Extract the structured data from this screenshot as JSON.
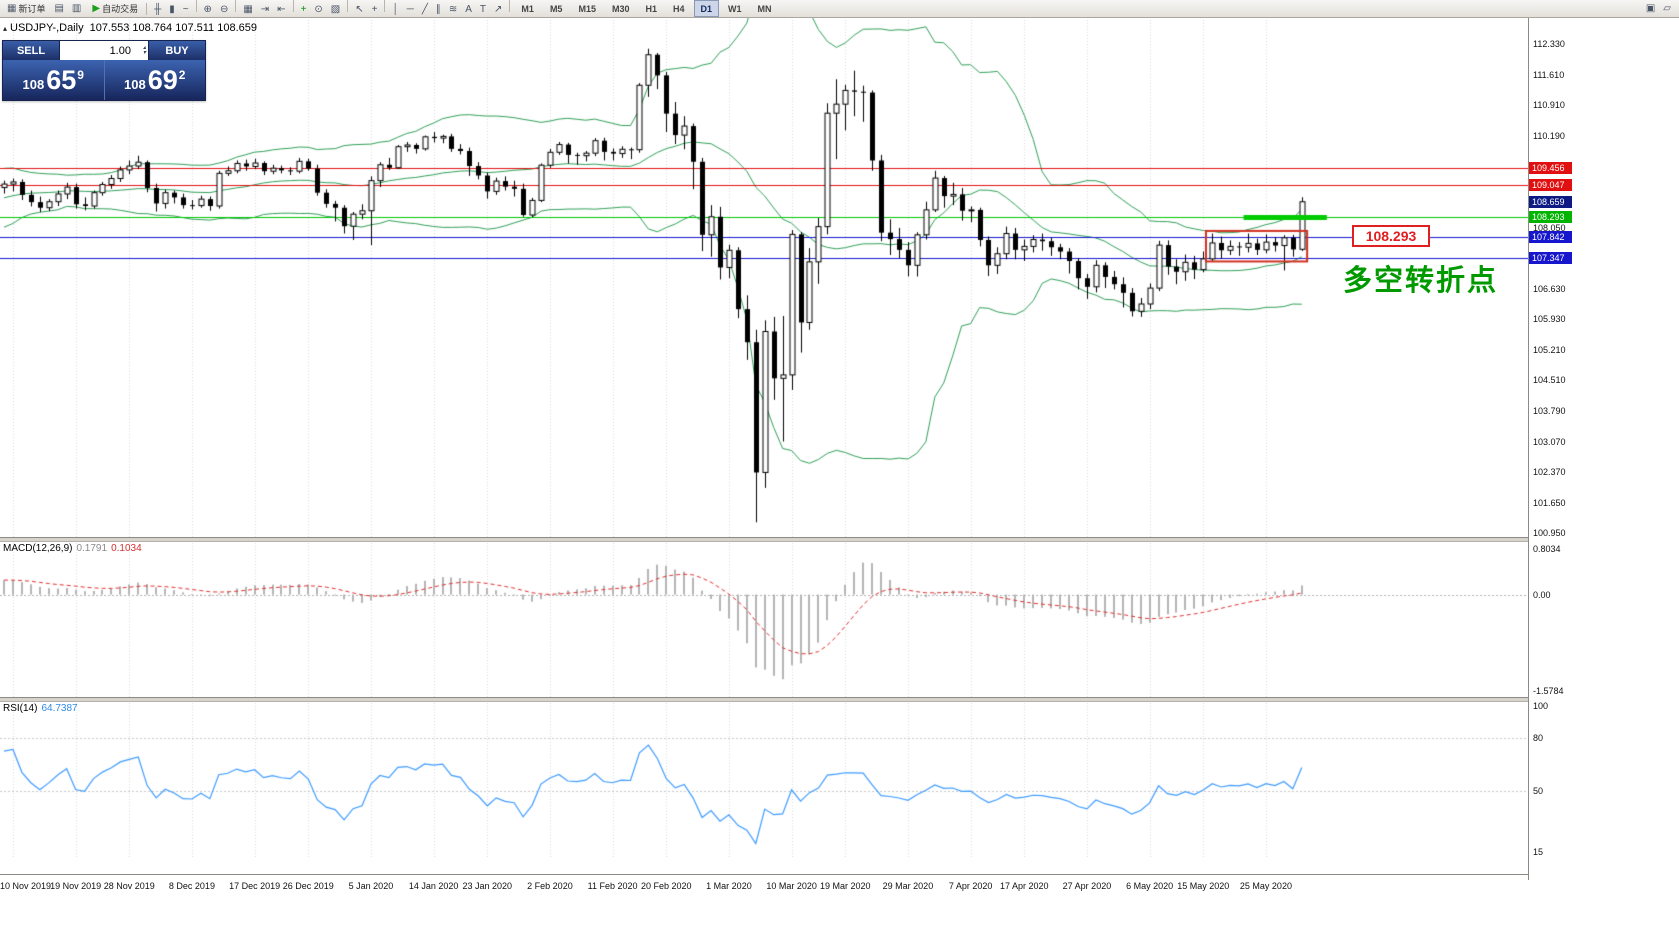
{
  "toolbar": {
    "new_order": {
      "label": "新订单"
    },
    "autotrade": {
      "label": "自动交易"
    },
    "standalone_icons": [
      {
        "name": "new-chart-icon",
        "glyph": "▤"
      },
      {
        "name": "profiles-icon",
        "glyph": "▥"
      }
    ],
    "icon_groups": [
      {
        "name": "chart-type",
        "icons": [
          {
            "name": "bar-chart-icon",
            "glyph": "╫"
          },
          {
            "name": "candlestick-chart-icon",
            "glyph": "▮"
          },
          {
            "name": "line-chart-icon",
            "glyph": "~"
          }
        ]
      },
      {
        "name": "zoom",
        "icons": [
          {
            "name": "zoom-in-icon",
            "glyph": "⊕"
          },
          {
            "name": "zoom-out-icon",
            "glyph": "⊖"
          }
        ]
      },
      {
        "name": "windows",
        "icons": [
          {
            "name": "tile-windows-icon",
            "glyph": "▦"
          },
          {
            "name": "auto-scroll-icon",
            "glyph": "⇥"
          },
          {
            "name": "chart-shift-icon",
            "glyph": "⇤"
          }
        ]
      },
      {
        "name": "insert",
        "icons": [
          {
            "name": "indicators-icon",
            "glyph": "+",
            "color": "#0a8f0a"
          },
          {
            "name": "periods-icon",
            "glyph": "⊙"
          },
          {
            "name": "templates-icon",
            "glyph": "▧"
          }
        ]
      },
      {
        "name": "cursor",
        "icons": [
          {
            "name": "cursor-icon",
            "glyph": "↖"
          },
          {
            "name": "crosshair-icon",
            "glyph": "+"
          }
        ]
      },
      {
        "name": "objects",
        "icons": [
          {
            "name": "vertical-line-icon",
            "glyph": "│"
          },
          {
            "name": "horizontal-line-icon",
            "glyph": "─"
          },
          {
            "name": "trendline-icon",
            "glyph": "╱"
          },
          {
            "name": "channel-icon",
            "glyph": "∥"
          },
          {
            "name": "fibonacci-icon",
            "glyph": "≋"
          },
          {
            "name": "text-icon",
            "glyph": "A"
          },
          {
            "name": "label-icon",
            "glyph": "T"
          },
          {
            "name": "arrows-icon",
            "glyph": "↗"
          }
        ]
      }
    ],
    "timeframes": {
      "items": [
        "M1",
        "M5",
        "M15",
        "M30",
        "H1",
        "H4",
        "D1",
        "W1",
        "MN"
      ],
      "active": "D1"
    },
    "right_icons": [
      {
        "name": "template-icon",
        "glyph": "▣"
      },
      {
        "name": "edit-icon",
        "glyph": "▱"
      }
    ]
  },
  "symbol_bar": {
    "collapse_icon": "▴",
    "symbol": "USDJPY-,Daily",
    "ohlc": "107.553 108.764 107.511 108.659"
  },
  "trade_panel": {
    "sell_label": "SELL",
    "buy_label": "BUY",
    "volume": "1.00",
    "sell": {
      "big": "108",
      "pips": "65",
      "frac": "9"
    },
    "buy": {
      "big": "108",
      "pips": "69",
      "frac": "2"
    }
  },
  "indicators": {
    "macd_label": "MACD(12,26,9)",
    "macd_value_1": "0.1791",
    "macd_value_2": "0.1034",
    "rsi_label": "RSI(14)",
    "rsi_value": "64.7387"
  },
  "price_axis": {
    "labels": [
      "112.330",
      "111.610",
      "110.910",
      "110.190",
      "108.050",
      "106.630",
      "105.930",
      "105.210",
      "104.510",
      "103.790",
      "103.070",
      "102.370",
      "101.650",
      "100.950"
    ],
    "badges": [
      {
        "text": "109.456",
        "color": "#e01010"
      },
      {
        "text": "109.047",
        "color": "#e01010"
      },
      {
        "text": "108.659",
        "color": "#0d1a84"
      },
      {
        "text": "108.293",
        "color": "#00b400"
      },
      {
        "text": "107.842",
        "color": "#1616cc"
      },
      {
        "text": "107.347",
        "color": "#1616cc"
      }
    ]
  },
  "macd_axis": {
    "top": "0.8034",
    "zero": "0.00",
    "bottom": "-1.5784"
  },
  "rsi_axis": {
    "labels": [
      "100",
      "80",
      "50",
      "15"
    ]
  },
  "annotations": {
    "level_label": "108.293",
    "turning_point": "多空转折点"
  },
  "chart_data": {
    "type": "candlestick",
    "symbol": "USDJPY",
    "period": "Daily",
    "y_range": [
      100.95,
      112.73
    ],
    "x_axis": {
      "labels": [
        "10 Nov 2019",
        "19 Nov 2019",
        "28 Nov 2019",
        "8 Dec 2019",
        "17 Dec 2019",
        "26 Dec 2019",
        "5 Jan 2020",
        "14 Jan 2020",
        "23 Jan 2020",
        "2 Feb 2020",
        "11 Feb 2020",
        "20 Feb 2020",
        "1 Mar 2020",
        "10 Mar 2020",
        "19 Mar 2020",
        "29 Mar 2020",
        "7 Apr 2020",
        "17 Apr 2020",
        "27 Apr 2020",
        "6 May 2020",
        "15 May 2020",
        "25 May 2020"
      ],
      "candle_indices": [
        1,
        8,
        14,
        21,
        28,
        34,
        41,
        48,
        54,
        61,
        68,
        74,
        81,
        88,
        94,
        101,
        108,
        114,
        121,
        128,
        134,
        141
      ]
    },
    "hlines": [
      {
        "price": 109.456,
        "color": "#e01010"
      },
      {
        "price": 109.047,
        "color": "#e01010"
      },
      {
        "price": 108.293,
        "color": "#00c800"
      },
      {
        "price": 107.842,
        "color": "#1616d2"
      },
      {
        "price": 107.347,
        "color": "#1616d2"
      }
    ],
    "trend_bar": {
      "from_index": 138.5,
      "to_index": 147.8,
      "price": 108.293,
      "color": "#00cc00",
      "thickness": 5
    },
    "highlight_box": {
      "from_index": 134.3,
      "to_index": 145.6,
      "price_top": 107.98,
      "price_bottom": 107.27,
      "color": "#d03020"
    },
    "indicator_settings": {
      "bollinger": {
        "period": 20,
        "deviation": 2,
        "color": "#2f9e57"
      },
      "macd": {
        "fast": 12,
        "slow": 26,
        "signal": 9,
        "hist_color": "#b4b4b4",
        "signal_color": "#e03030"
      },
      "rsi": {
        "period": 14,
        "color": "#3e9bff",
        "levels": [
          80,
          50
        ]
      }
    },
    "lead_in_closes": [
      108.0,
      108.15,
      108.05,
      108.25,
      108.35,
      108.5,
      108.6,
      108.45,
      108.65,
      108.8,
      108.9,
      109.0,
      108.95,
      109.1,
      109.15,
      109.2,
      109.05,
      108.95,
      108.9,
      108.95
    ],
    "ohlc": [
      [
        108.99,
        109.15,
        108.85,
        109.07
      ],
      [
        109.07,
        109.2,
        108.9,
        109.12
      ],
      [
        109.12,
        109.18,
        108.7,
        108.82
      ],
      [
        108.82,
        108.92,
        108.55,
        108.65
      ],
      [
        108.65,
        108.78,
        108.42,
        108.52
      ],
      [
        108.52,
        108.72,
        108.44,
        108.66
      ],
      [
        108.66,
        108.92,
        108.56,
        108.84
      ],
      [
        108.84,
        109.1,
        108.72,
        109.0
      ],
      [
        109.0,
        109.08,
        108.5,
        108.6
      ],
      [
        108.6,
        108.76,
        108.46,
        108.56
      ],
      [
        108.56,
        108.92,
        108.5,
        108.87
      ],
      [
        108.87,
        109.12,
        108.8,
        109.06
      ],
      [
        109.06,
        109.28,
        108.96,
        109.2
      ],
      [
        109.2,
        109.48,
        109.12,
        109.4
      ],
      [
        109.4,
        109.62,
        109.3,
        109.49
      ],
      [
        109.49,
        109.73,
        109.42,
        109.58
      ],
      [
        109.58,
        109.62,
        108.88,
        108.98
      ],
      [
        108.98,
        109.08,
        108.43,
        108.62
      ],
      [
        108.62,
        108.94,
        108.5,
        108.87
      ],
      [
        108.87,
        108.92,
        108.62,
        108.76
      ],
      [
        108.76,
        108.85,
        108.5,
        108.58
      ],
      [
        108.58,
        108.7,
        108.48,
        108.57
      ],
      [
        108.57,
        108.8,
        108.52,
        108.72
      ],
      [
        108.72,
        108.78,
        108.45,
        108.56
      ],
      [
        108.56,
        109.38,
        108.5,
        109.32
      ],
      [
        109.32,
        109.48,
        109.26,
        109.38
      ],
      [
        109.38,
        109.62,
        109.32,
        109.55
      ],
      [
        109.55,
        109.64,
        109.38,
        109.48
      ],
      [
        109.48,
        109.66,
        109.42,
        109.56
      ],
      [
        109.56,
        109.6,
        109.28,
        109.37
      ],
      [
        109.37,
        109.52,
        109.3,
        109.44
      ],
      [
        109.44,
        109.5,
        109.32,
        109.39
      ],
      [
        109.39,
        109.46,
        109.28,
        109.37
      ],
      [
        109.37,
        109.68,
        109.32,
        109.6
      ],
      [
        109.6,
        109.66,
        109.38,
        109.43
      ],
      [
        109.43,
        109.52,
        108.8,
        108.87
      ],
      [
        108.87,
        108.95,
        108.52,
        108.61
      ],
      [
        108.61,
        108.68,
        108.2,
        108.52
      ],
      [
        108.52,
        108.58,
        107.92,
        108.09
      ],
      [
        108.09,
        108.42,
        107.77,
        108.37
      ],
      [
        108.37,
        108.6,
        108.25,
        108.45
      ],
      [
        108.45,
        109.25,
        107.65,
        109.15
      ],
      [
        109.15,
        109.58,
        109.0,
        109.52
      ],
      [
        109.52,
        109.68,
        109.4,
        109.45
      ],
      [
        109.45,
        109.98,
        109.42,
        109.94
      ],
      [
        109.94,
        110.05,
        109.82,
        109.98
      ],
      [
        109.98,
        110.02,
        109.78,
        109.89
      ],
      [
        109.89,
        110.2,
        109.85,
        110.17
      ],
      [
        110.17,
        110.28,
        110.04,
        110.14
      ],
      [
        110.14,
        110.22,
        110.02,
        110.18
      ],
      [
        110.18,
        110.24,
        109.82,
        109.89
      ],
      [
        109.89,
        110.0,
        109.76,
        109.84
      ],
      [
        109.84,
        109.92,
        109.26,
        109.49
      ],
      [
        109.49,
        109.58,
        109.18,
        109.27
      ],
      [
        109.27,
        109.34,
        108.73,
        108.9
      ],
      [
        108.9,
        109.22,
        108.82,
        109.14
      ],
      [
        109.14,
        109.25,
        108.92,
        109.01
      ],
      [
        109.01,
        109.15,
        108.78,
        108.96
      ],
      [
        108.96,
        109.08,
        108.31,
        108.35
      ],
      [
        108.35,
        108.75,
        108.3,
        108.69
      ],
      [
        108.69,
        109.55,
        108.65,
        109.51
      ],
      [
        109.51,
        109.89,
        109.45,
        109.81
      ],
      [
        109.81,
        110.05,
        109.75,
        109.99
      ],
      [
        109.99,
        110.03,
        109.55,
        109.75
      ],
      [
        109.75,
        109.8,
        109.52,
        109.73
      ],
      [
        109.73,
        109.84,
        109.6,
        109.79
      ],
      [
        109.79,
        110.14,
        109.72,
        110.08
      ],
      [
        110.08,
        110.15,
        109.62,
        109.82
      ],
      [
        109.82,
        109.9,
        109.62,
        109.78
      ],
      [
        109.78,
        109.95,
        109.68,
        109.88
      ],
      [
        109.88,
        109.92,
        109.65,
        109.87
      ],
      [
        109.87,
        111.42,
        109.8,
        111.37
      ],
      [
        111.37,
        112.22,
        111.1,
        112.08
      ],
      [
        112.08,
        112.12,
        111.28,
        111.6
      ],
      [
        111.6,
        111.68,
        110.28,
        110.71
      ],
      [
        110.71,
        110.98,
        110.0,
        110.21
      ],
      [
        110.21,
        110.65,
        109.88,
        110.42
      ],
      [
        110.42,
        110.48,
        108.95,
        109.59
      ],
      [
        109.59,
        109.68,
        107.51,
        107.89
      ],
      [
        107.89,
        108.58,
        107.38,
        108.31
      ],
      [
        108.31,
        108.54,
        106.85,
        107.13
      ],
      [
        107.13,
        107.66,
        106.88,
        107.53
      ],
      [
        107.53,
        107.6,
        105.95,
        106.16
      ],
      [
        106.16,
        106.48,
        104.98,
        105.39
      ],
      [
        105.39,
        105.68,
        101.2,
        102.36
      ],
      [
        102.36,
        105.9,
        102.0,
        105.64
      ],
      [
        105.64,
        105.98,
        104.05,
        104.55
      ],
      [
        104.55,
        106.0,
        103.08,
        104.63
      ],
      [
        104.63,
        108.0,
        104.28,
        107.9
      ],
      [
        107.9,
        107.95,
        105.15,
        105.85
      ],
      [
        105.85,
        107.58,
        105.68,
        107.26
      ],
      [
        107.26,
        108.28,
        106.75,
        108.08
      ],
      [
        108.08,
        110.95,
        107.9,
        110.72
      ],
      [
        110.72,
        111.51,
        109.65,
        110.93
      ],
      [
        110.93,
        111.38,
        110.32,
        111.25
      ],
      [
        111.25,
        111.71,
        110.65,
        111.22
      ],
      [
        111.22,
        111.36,
        110.52,
        111.2
      ],
      [
        111.2,
        111.25,
        109.38,
        109.62
      ],
      [
        109.62,
        109.75,
        107.74,
        107.94
      ],
      [
        107.94,
        108.25,
        107.42,
        107.79
      ],
      [
        107.79,
        108.05,
        107.35,
        107.54
      ],
      [
        107.54,
        107.72,
        106.92,
        107.18
      ],
      [
        107.18,
        107.95,
        106.92,
        107.89
      ],
      [
        107.89,
        108.66,
        107.78,
        108.47
      ],
      [
        108.47,
        109.38,
        108.42,
        109.21
      ],
      [
        109.21,
        109.26,
        108.52,
        108.79
      ],
      [
        108.79,
        109.1,
        108.58,
        108.83
      ],
      [
        108.83,
        108.98,
        108.22,
        108.45
      ],
      [
        108.45,
        108.55,
        108.18,
        108.47
      ],
      [
        108.47,
        108.52,
        107.62,
        107.77
      ],
      [
        107.77,
        107.85,
        106.93,
        107.18
      ],
      [
        107.18,
        107.6,
        106.98,
        107.45
      ],
      [
        107.45,
        108.08,
        107.32,
        107.92
      ],
      [
        107.92,
        108.05,
        107.32,
        107.54
      ],
      [
        107.54,
        107.78,
        107.28,
        107.62
      ],
      [
        107.62,
        107.88,
        107.48,
        107.78
      ],
      [
        107.78,
        107.92,
        107.52,
        107.74
      ],
      [
        107.74,
        107.82,
        107.4,
        107.6
      ],
      [
        107.6,
        107.68,
        107.32,
        107.5
      ],
      [
        107.5,
        107.58,
        106.99,
        107.28
      ],
      [
        107.28,
        107.35,
        106.62,
        106.88
      ],
      [
        106.88,
        106.98,
        106.4,
        106.68
      ],
      [
        106.68,
        107.3,
        106.55,
        107.18
      ],
      [
        107.18,
        107.25,
        106.65,
        106.91
      ],
      [
        106.91,
        107.05,
        106.62,
        106.74
      ],
      [
        106.74,
        106.9,
        106.2,
        106.54
      ],
      [
        106.54,
        106.65,
        105.99,
        106.11
      ],
      [
        106.11,
        106.42,
        105.98,
        106.28
      ],
      [
        106.28,
        106.76,
        106.16,
        106.65
      ],
      [
        106.65,
        107.75,
        106.58,
        107.65
      ],
      [
        107.65,
        107.76,
        106.96,
        107.15
      ],
      [
        107.15,
        107.32,
        106.74,
        107.03
      ],
      [
        107.03,
        107.43,
        106.82,
        107.25
      ],
      [
        107.25,
        107.4,
        106.86,
        107.08
      ],
      [
        107.08,
        107.5,
        107.02,
        107.33
      ],
      [
        107.33,
        107.92,
        107.26,
        107.7
      ],
      [
        107.7,
        107.85,
        107.33,
        107.53
      ],
      [
        107.53,
        107.76,
        107.42,
        107.62
      ],
      [
        107.62,
        107.72,
        107.4,
        107.6
      ],
      [
        107.6,
        107.92,
        107.48,
        107.69
      ],
      [
        107.69,
        107.8,
        107.42,
        107.54
      ],
      [
        107.54,
        107.9,
        107.46,
        107.72
      ],
      [
        107.72,
        107.84,
        107.5,
        107.64
      ],
      [
        107.64,
        107.88,
        107.06,
        107.82
      ],
      [
        107.82,
        107.89,
        107.38,
        107.55
      ],
      [
        107.553,
        108.764,
        107.511,
        108.659
      ]
    ]
  }
}
